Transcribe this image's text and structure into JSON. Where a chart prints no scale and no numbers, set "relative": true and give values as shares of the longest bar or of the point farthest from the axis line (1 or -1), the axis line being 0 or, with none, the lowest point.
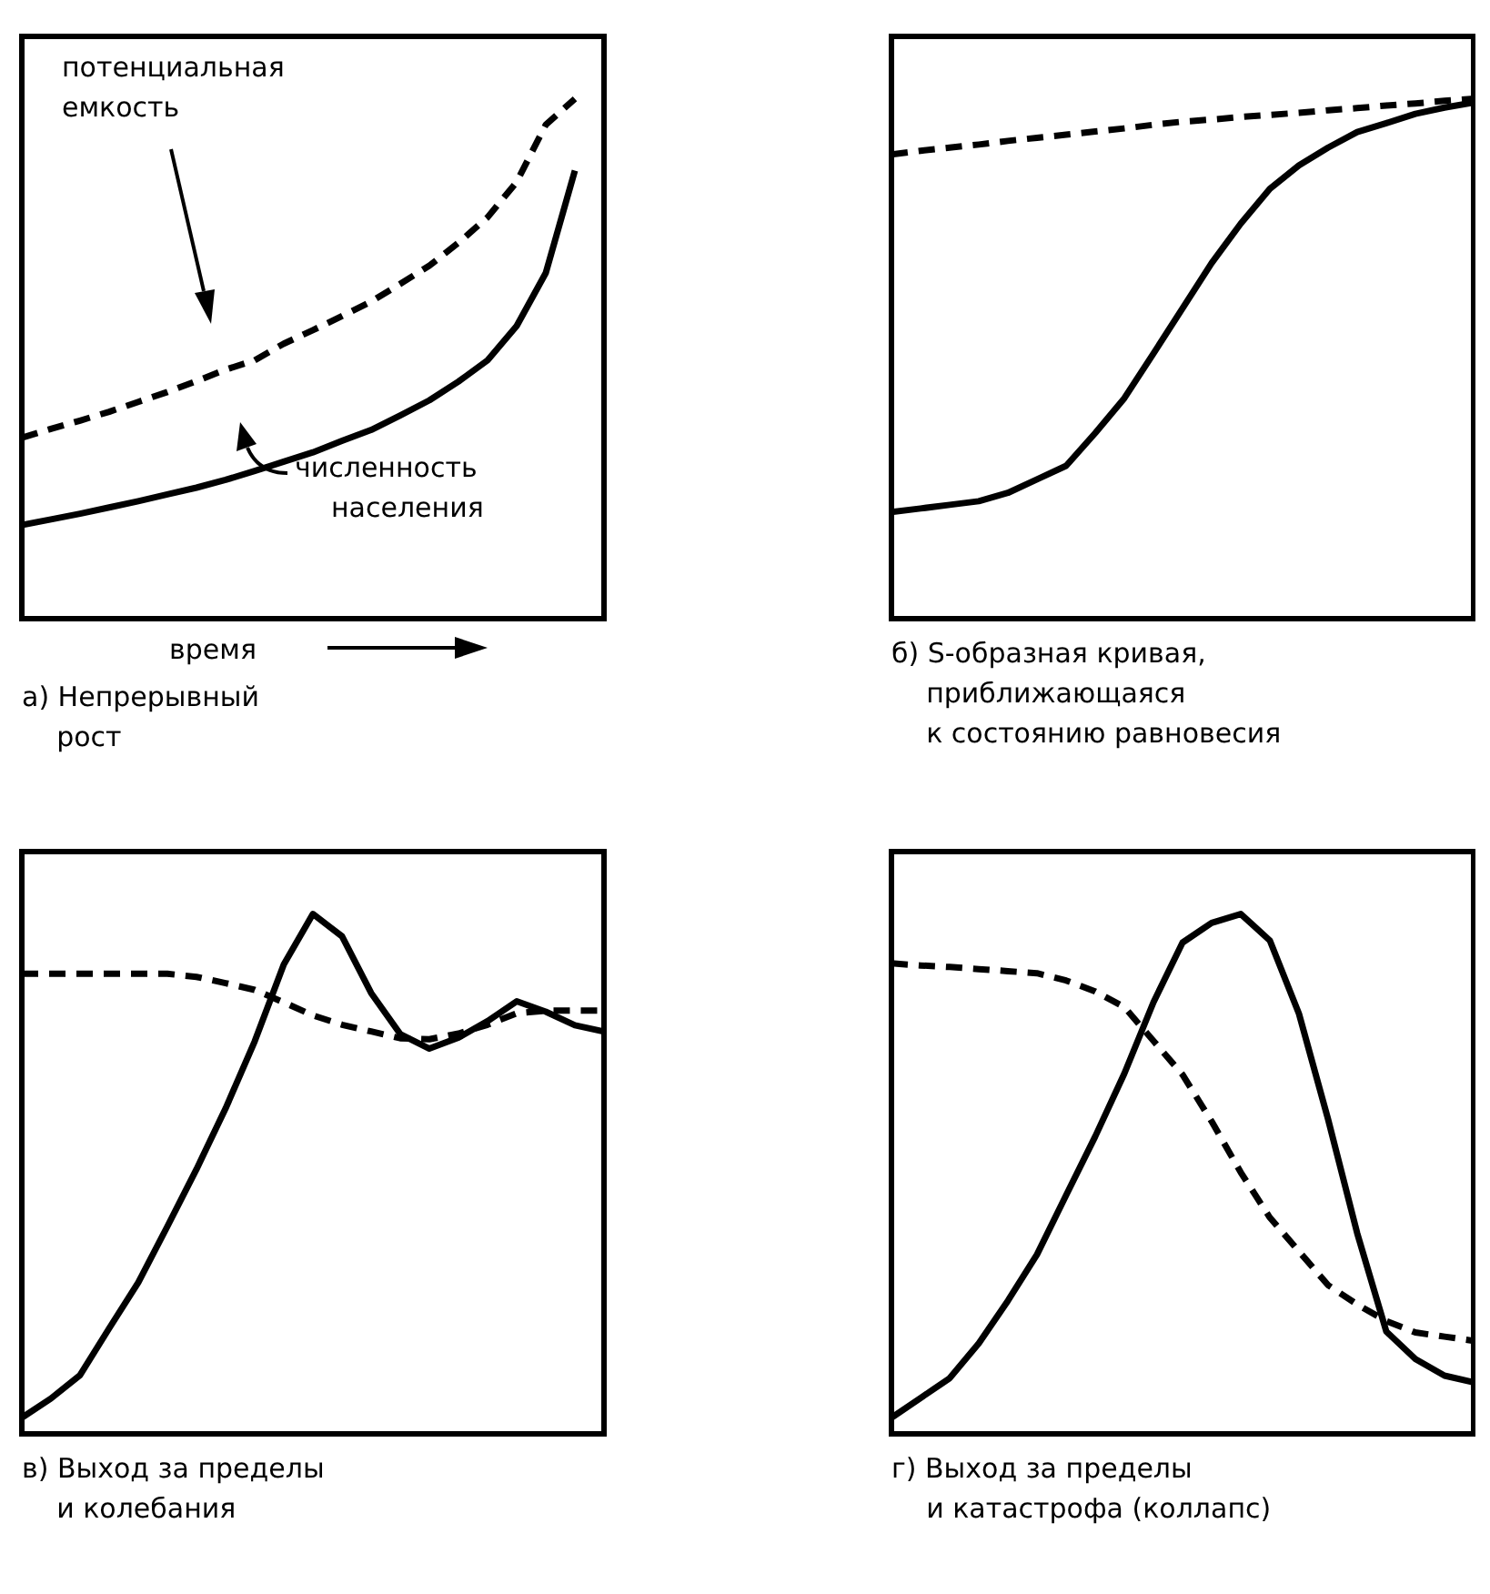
{
  "chart_data": [
    {
      "type": "line",
      "relative": true,
      "categories": [
        null,
        null,
        null,
        null,
        null,
        null,
        null,
        null,
        null,
        null,
        null,
        null,
        null,
        null,
        null,
        null,
        null,
        null,
        null,
        null,
        null
      ],
      "title": "а) Непрерывный\n   рост",
      "xlabel": "время",
      "annotations": [
        "потенциальная\nемкость",
        "численность\nнаселения"
      ],
      "series": [
        {
          "color": "#000000",
          "line_style": "dashed",
          "values": [
            0.348,
            0.365,
            0.381,
            0.398,
            0.417,
            0.436,
            0.457,
            0.479,
            0.497,
            0.529,
            0.555,
            0.582,
            0.61,
            0.644,
            0.679,
            0.723,
            0.772,
            0.84,
            0.95,
            1,
            null
          ]
        },
        {
          "color": "#000000",
          "line_style": "solid",
          "values": [
            0.18,
            0.191,
            0.202,
            0.214,
            0.226,
            0.239,
            0.252,
            0.267,
            0.284,
            0.302,
            0.32,
            0.342,
            0.363,
            0.391,
            0.42,
            0.456,
            0.497,
            0.563,
            0.665,
            0.862,
            null
          ]
        }
      ]
    },
    {
      "type": "line",
      "relative": true,
      "categories": [
        null,
        null,
        null,
        null,
        null,
        null,
        null,
        null,
        null,
        null,
        null,
        null,
        null,
        null,
        null,
        null,
        null,
        null,
        null,
        null,
        null
      ],
      "title": "б) S-образная кривая,\n   приближающаяся\n   к состоянию равновесия",
      "series": [
        {
          "color": "#000000",
          "line_style": "dashed",
          "values": [
            0.893,
            0.9,
            0.906,
            0.912,
            0.919,
            0.925,
            0.931,
            0.937,
            0.943,
            0.95,
            0.956,
            0.96,
            0.965,
            0.969,
            0.973,
            0.978,
            0.982,
            0.987,
            0.991,
            0.996,
            1
          ]
        },
        {
          "color": "#000000",
          "line_style": "solid",
          "values": [
            0.205,
            0.212,
            0.219,
            0.226,
            0.242,
            0.268,
            0.294,
            0.357,
            0.424,
            0.51,
            0.597,
            0.684,
            0.76,
            0.827,
            0.872,
            0.906,
            0.936,
            0.953,
            0.971,
            0.983,
            0.993
          ]
        }
      ]
    },
    {
      "type": "line",
      "relative": true,
      "categories": [
        null,
        null,
        null,
        null,
        null,
        null,
        null,
        null,
        null,
        null,
        null,
        null,
        null,
        null,
        null,
        null,
        null,
        null,
        null,
        null,
        null
      ],
      "title": "в) Выход за пределы\n   и колебания",
      "series": [
        {
          "color": "#000000",
          "line_style": "dashed",
          "values": [
            0.885,
            0.885,
            0.885,
            0.885,
            0.885,
            0.885,
            0.879,
            0.867,
            0.854,
            0.83,
            0.805,
            0.787,
            0.774,
            0.761,
            0.759,
            0.77,
            0.787,
            0.809,
            0.814,
            0.814,
            0.814
          ]
        },
        {
          "color": "#000000",
          "line_style": "solid",
          "values": [
            0.031,
            0.068,
            0.113,
            0.203,
            0.291,
            0.399,
            0.509,
            0.626,
            0.755,
            0.903,
            1,
            0.957,
            0.848,
            0.769,
            0.741,
            0.762,
            0.794,
            0.832,
            0.812,
            0.786,
            0.774
          ]
        }
      ]
    },
    {
      "type": "line",
      "relative": true,
      "categories": [
        null,
        null,
        null,
        null,
        null,
        null,
        null,
        null,
        null,
        null,
        null,
        null,
        null,
        null,
        null,
        null,
        null,
        null,
        null,
        null,
        null
      ],
      "title": "г) Выход за пределы\n   и катастрофа (коллапс)",
      "series": [
        {
          "color": "#000000",
          "line_style": "dashed",
          "values": [
            0.905,
            0.901,
            0.898,
            0.894,
            0.89,
            0.886,
            0.872,
            0.851,
            0.821,
            0.756,
            0.691,
            0.601,
            0.503,
            0.416,
            0.351,
            0.286,
            0.249,
            0.217,
            0.195,
            0.187,
            0.179
          ]
        },
        {
          "color": "#000000",
          "line_style": "solid",
          "values": [
            0.031,
            0.069,
            0.107,
            0.174,
            0.256,
            0.345,
            0.459,
            0.572,
            0.693,
            0.83,
            0.945,
            0.983,
            1,
            0.949,
            0.808,
            0.605,
            0.386,
            0.197,
            0.144,
            0.112,
            0.099
          ]
        }
      ]
    }
  ]
}
